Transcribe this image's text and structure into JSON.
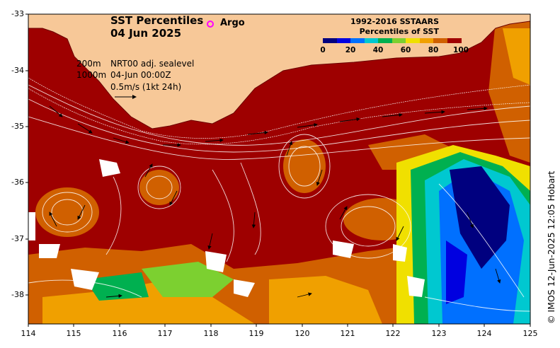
{
  "title": {
    "line1": "SST Percentiles",
    "line2": "04 Jun 2025"
  },
  "argo_label": "Argo",
  "info": {
    "depth_200": "200m",
    "depth_1000": "1000m",
    "product": "NRT00 adj. sealevel",
    "timestamp": "04-Jun 00:00Z",
    "vector_scale": "0.5m/s (1kt 24h)"
  },
  "legend": {
    "title1": "1992-2016 SSTAARS",
    "title2": "Percentiles of SST",
    "ticks": [
      "0",
      "20",
      "40",
      "60",
      "80",
      "100"
    ],
    "colors": [
      "#00007f",
      "#0000e0",
      "#0070ff",
      "#00c8d0",
      "#00b050",
      "#7cd030",
      "#f0e000",
      "#f0a000",
      "#d06000",
      "#a00000"
    ]
  },
  "axes": {
    "lat_labels": [
      "-33",
      "-34",
      "-35",
      "-36",
      "-37",
      "-38"
    ],
    "lon_labels": [
      "114",
      "115",
      "116",
      "117",
      "118",
      "119",
      "120",
      "121",
      "122",
      "123",
      "124",
      "125"
    ]
  },
  "credit": "© IMOS 12-Jun-2025 12:05 Hobart",
  "map": {
    "land_color": "#f7c898",
    "hot_color": "#9e0000",
    "warm_color": "#d06000",
    "cool_color": "#00a8d8",
    "cold_color": "#0000a0",
    "gap_color": "#ffffff"
  }
}
